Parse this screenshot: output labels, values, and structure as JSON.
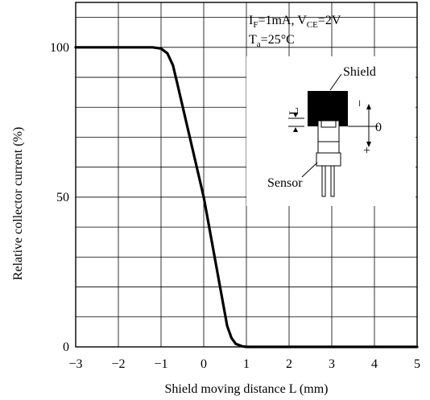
{
  "chart_data": {
    "type": "line",
    "title": "",
    "xlabel": "Shield moving distance L (mm)",
    "ylabel": "Relative collector current (%)",
    "xlim": [
      -3,
      5
    ],
    "ylim": [
      0,
      115
    ],
    "x_ticks": [
      -3,
      -2,
      -1,
      0,
      1,
      2,
      3,
      4,
      5
    ],
    "x_tick_labels": [
      "−3",
      "−2",
      "−1",
      "0",
      "1",
      "2",
      "3",
      "4",
      "5"
    ],
    "y_ticks": [
      0,
      50,
      100
    ],
    "y_tick_labels": [
      "0",
      "50",
      "100"
    ],
    "grid": true,
    "series": [
      {
        "name": "",
        "x": [
          -3,
          -1.2,
          -1.0,
          -0.85,
          -0.72,
          -0.62,
          0.0,
          0.55,
          0.65,
          0.75,
          0.9,
          1.0,
          5
        ],
        "y": [
          100,
          100,
          99.6,
          98,
          94,
          88,
          50,
          7,
          3,
          1,
          0.2,
          0,
          0
        ]
      }
    ]
  },
  "conditions": {
    "line1": {
      "i_main": "I",
      "i_sub": "F",
      "i_value": "=1mA, V",
      "v_sub": "CE",
      "v_value": "=2V"
    },
    "line2": {
      "t_main": "T",
      "t_sub": "a",
      "t_value": "=25°C"
    }
  },
  "inset": {
    "shield_label": "Shield",
    "sensor_label": "Sensor",
    "l_label": "L",
    "minus_sign": "−",
    "zero_label": "0",
    "plus_sign": "+"
  },
  "colors": {
    "line": "#000000",
    "grid": "#000000",
    "shield_fill": "#000000",
    "background": "#ffffff"
  }
}
